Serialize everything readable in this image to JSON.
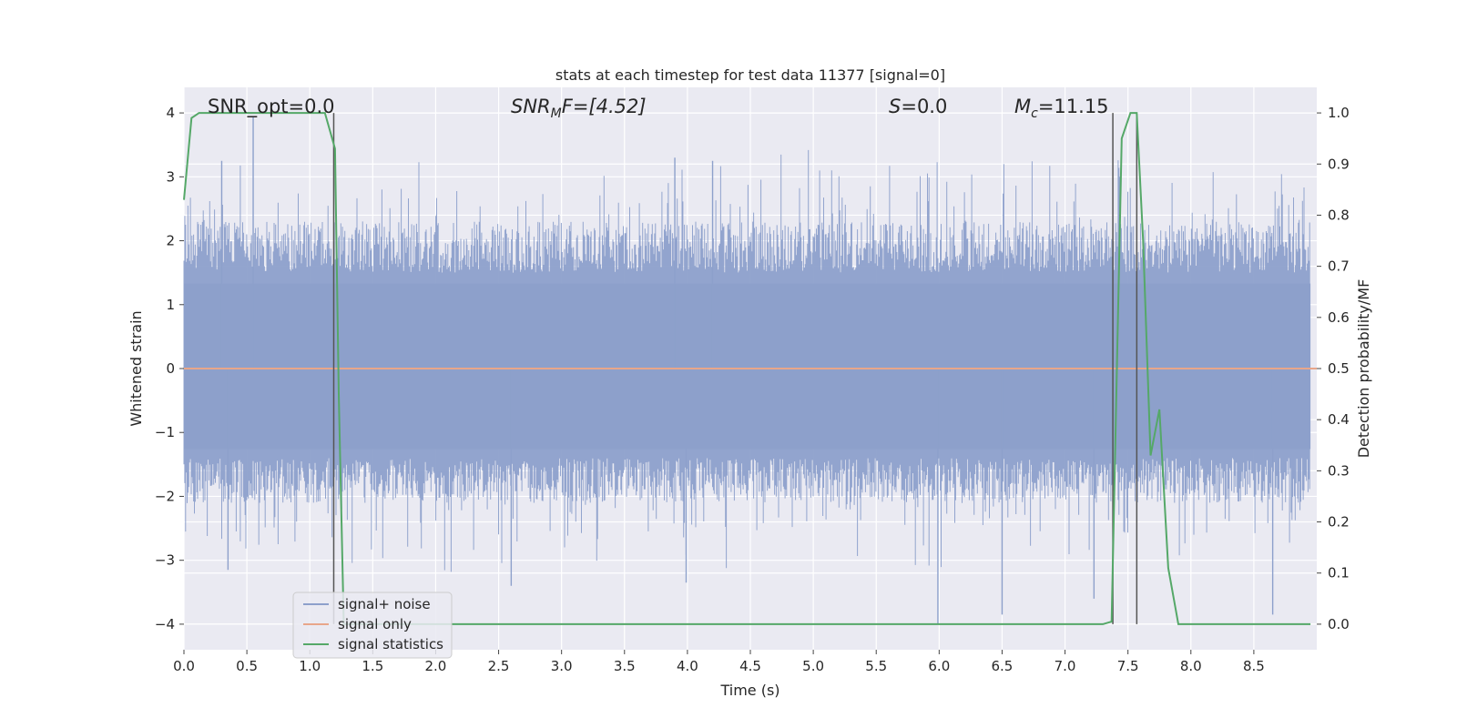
{
  "chart_data": {
    "type": "line",
    "title": "stats at each timestep for test data 11377 [signal=0]",
    "xlabel": "Time (s)",
    "ylabel": "Whitened strain",
    "y2label": "Detection probability/MF",
    "xlim": [
      0,
      9.0
    ],
    "ylim": [
      -4.4,
      4.4
    ],
    "y2lim": [
      -0.05,
      1.05
    ],
    "xticks": [
      "0.0",
      "0.5",
      "1.0",
      "1.5",
      "2.0",
      "2.5",
      "3.0",
      "3.5",
      "4.0",
      "4.5",
      "5.0",
      "5.5",
      "6.0",
      "6.5",
      "7.0",
      "7.5",
      "8.0",
      "8.5"
    ],
    "yticks": [
      "−4",
      "−3",
      "−2",
      "−1",
      "0",
      "1",
      "2",
      "3",
      "4"
    ],
    "y2ticks": [
      "0.0",
      "0.1",
      "0.2",
      "0.3",
      "0.4",
      "0.5",
      "0.6",
      "0.7",
      "0.8",
      "0.9",
      "1.0"
    ],
    "grid": true,
    "legend_position": "lower-left",
    "colors": {
      "noise": "#8da0cb",
      "signal": "#e8a68a",
      "statistics": "#55a868",
      "vline": "#555555",
      "background": "#eaeaf2",
      "grid": "#ffffff"
    },
    "annotations": {
      "snr_opt": "SNR_opt=0.0",
      "snr_mf_base": "SNR",
      "snr_mf_sub": "M",
      "snr_mf_rest": "F=[4.52]",
      "s_base": "S",
      "s_rest": "=0.0",
      "mc_base": "M",
      "mc_sub": "c",
      "mc_rest": "=11.15"
    },
    "series": [
      {
        "name": "signal+ noise",
        "description_type": "noise band",
        "typical_range": [
          -1.8,
          1.9
        ],
        "extremes": [
          {
            "x": 0.55,
            "y": 3.95
          },
          {
            "x": 0.3,
            "y": 3.25
          },
          {
            "x": 3.9,
            "y": 3.3
          },
          {
            "x": 4.2,
            "y": 3.25
          },
          {
            "x": 0.35,
            "y": -3.15
          },
          {
            "x": 2.6,
            "y": -3.4
          },
          {
            "x": 3.99,
            "y": -3.35
          },
          {
            "x": 5.99,
            "y": -4.0
          },
          {
            "x": 6.5,
            "y": -3.85
          },
          {
            "x": 7.23,
            "y": -3.6
          },
          {
            "x": 8.65,
            "y": -3.85
          }
        ]
      },
      {
        "name": "signal only",
        "x": [
          0.0,
          9.0
        ],
        "y": [
          0.0,
          0.0
        ]
      },
      {
        "name": "signal statistics",
        "axis": "right",
        "x": [
          0.0,
          0.06,
          0.12,
          0.5,
          1.0,
          1.12,
          1.2,
          1.23,
          1.27,
          7.3,
          7.37,
          7.45,
          7.52,
          7.57,
          7.62,
          7.68,
          7.75,
          7.82,
          7.9,
          8.95
        ],
        "y": [
          0.83,
          0.99,
          1.0,
          1.0,
          1.0,
          1.0,
          0.93,
          0.45,
          0.0,
          0.0,
          0.005,
          0.95,
          1.0,
          1.0,
          0.75,
          0.33,
          0.42,
          0.11,
          0.0,
          0.0
        ]
      }
    ],
    "vertical_lines_x": [
      1.19,
      7.38,
      7.57
    ],
    "legend": [
      "signal+ noise",
      "signal only",
      "signal statistics"
    ]
  }
}
